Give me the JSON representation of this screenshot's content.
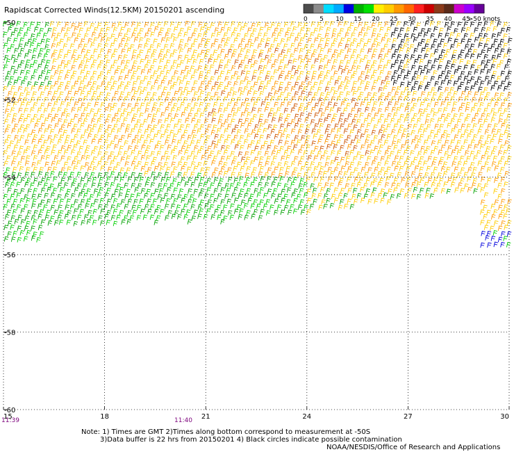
{
  "title": "Rapidscat Corrected Winds(12.5KM) 20150201 ascending",
  "legend": {
    "colors": [
      "#4d4d4d",
      "#8c8c8c",
      "#00ddff",
      "#00aaff",
      "#0000e0",
      "#00b000",
      "#00e000",
      "#ffee00",
      "#ffcc00",
      "#ff9900",
      "#ff6600",
      "#ff2020",
      "#cc0000",
      "#8b3a1a",
      "#5a2a1a",
      "#cc00cc",
      "#9900ff",
      "#660099"
    ],
    "labels": [
      "0",
      "5",
      "10",
      "15",
      "20",
      "25",
      "30",
      "35",
      "40",
      "45",
      ">50 knots"
    ],
    "label_values": [
      0,
      5,
      10,
      15,
      20,
      25,
      30,
      35,
      40,
      45,
      50
    ]
  },
  "lon_ticks": [
    "15",
    "18",
    "21",
    "24",
    "27",
    "30"
  ],
  "lat_ticks": [
    "-50",
    "-52",
    "-54",
    "-56",
    "-58",
    "-60"
  ],
  "times": [
    "11:39",
    "11:40"
  ],
  "notes": [
    "Note: 1) Times are GMT 2)Times along bottom correspond to measurement at -50S",
    "3)Data buffer is 22 hrs from 20150201 4) Black circles indicate possible contamination",
    "NOAA/NESDIS/Office of Research and Applications"
  ],
  "wind_colors": {
    "low": "#00a000",
    "light": "#00d000",
    "mid": "#ffcc00",
    "high": "#ff9900",
    "peak": "#cc5500",
    "extreme": "#000000",
    "blue": "#0000dd"
  }
}
